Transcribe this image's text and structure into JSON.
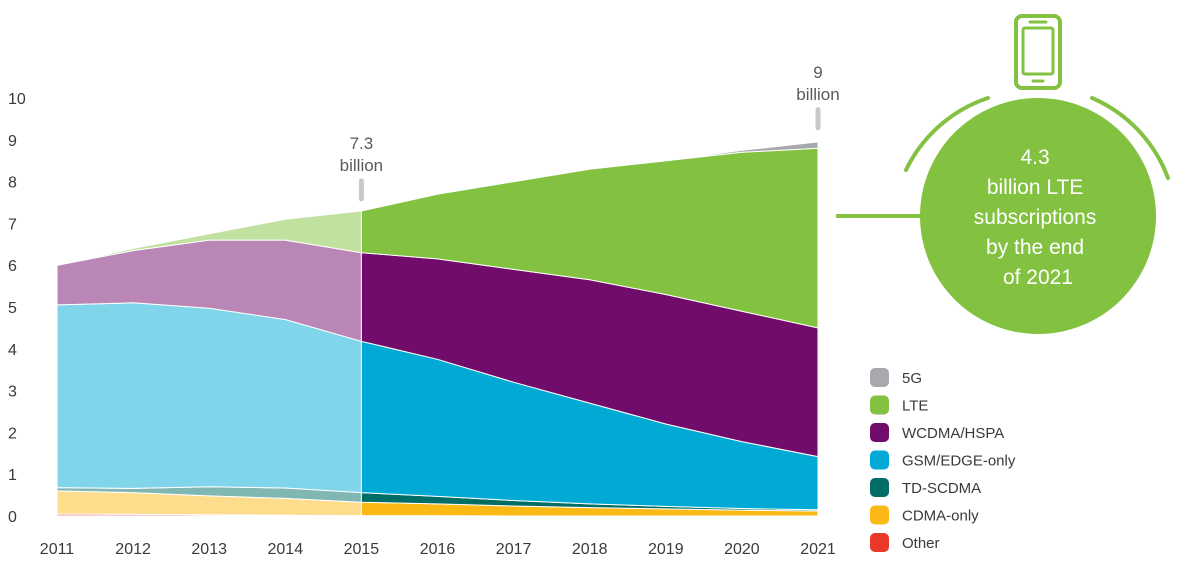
{
  "chart_data": {
    "type": "area",
    "stacked": true,
    "title": "",
    "xlabel": "",
    "ylabel": "",
    "x": [
      2011,
      2012,
      2013,
      2014,
      2015,
      2016,
      2017,
      2018,
      2019,
      2020,
      2021
    ],
    "xtick_labels": [
      "2011",
      "2012",
      "2013",
      "2014",
      "2015",
      "2016",
      "2017",
      "2018",
      "2019",
      "2020",
      "2021"
    ],
    "ylim": [
      0,
      10
    ],
    "yticks": [
      0,
      1,
      2,
      3,
      4,
      5,
      6,
      7,
      8,
      9,
      10
    ],
    "ytick_labels": [
      "0",
      "1",
      "2",
      "3",
      "4",
      "5",
      "6",
      "7",
      "8",
      "9",
      "10"
    ],
    "grid": false,
    "legend_position": "bottom-right",
    "historical_until": 2015,
    "series": [
      {
        "name": "Other",
        "color": "#e8392b",
        "values": [
          0.05,
          0.04,
          0.03,
          0.02,
          0.01,
          0.01,
          0.0,
          0.0,
          0.0,
          0.0,
          0.0
        ]
      },
      {
        "name": "CDMA-only",
        "color": "#fbb916",
        "values": [
          0.55,
          0.52,
          0.45,
          0.4,
          0.32,
          0.28,
          0.24,
          0.2,
          0.17,
          0.14,
          0.12
        ]
      },
      {
        "name": "TD-SCDMA",
        "color": "#006e65",
        "values": [
          0.08,
          0.1,
          0.22,
          0.25,
          0.23,
          0.18,
          0.13,
          0.09,
          0.06,
          0.04,
          0.03
        ]
      },
      {
        "name": "GSM/EDGE-only",
        "color": "#00aad4",
        "values": [
          4.37,
          4.44,
          4.27,
          4.03,
          3.62,
          3.28,
          2.83,
          2.41,
          1.97,
          1.6,
          1.27
        ]
      },
      {
        "name": "WCDMA/HSPA",
        "color": "#720c6a",
        "values": [
          0.95,
          1.25,
          1.63,
          1.9,
          2.12,
          2.4,
          2.7,
          2.95,
          3.1,
          3.12,
          3.08
        ]
      },
      {
        "name": "LTE",
        "color": "#83c241",
        "values": [
          0.0,
          0.05,
          0.15,
          0.5,
          1.0,
          1.55,
          2.1,
          2.65,
          3.2,
          3.8,
          4.3
        ]
      },
      {
        "name": "5G",
        "color": "#a7a9ac",
        "values": [
          0.0,
          0.0,
          0.0,
          0.0,
          0.0,
          0.0,
          0.0,
          0.0,
          0.0,
          0.05,
          0.15
        ]
      }
    ],
    "legend_order": [
      "5G",
      "LTE",
      "WCDMA/HSPA",
      "GSM/EDGE-only",
      "TD-SCDMA",
      "CDMA-only",
      "Other"
    ],
    "annotations": [
      {
        "x": 2015,
        "y": 7.3,
        "lines": [
          "7.3",
          "billion"
        ]
      },
      {
        "x": 2021,
        "y": 9,
        "lines": [
          "9",
          "billion"
        ]
      }
    ]
  },
  "callout": {
    "lines": [
      "4.3",
      "billion LTE",
      "subscriptions",
      "by the end",
      "of 2021"
    ],
    "icon": "smartphone-icon",
    "color": "#83c241"
  }
}
